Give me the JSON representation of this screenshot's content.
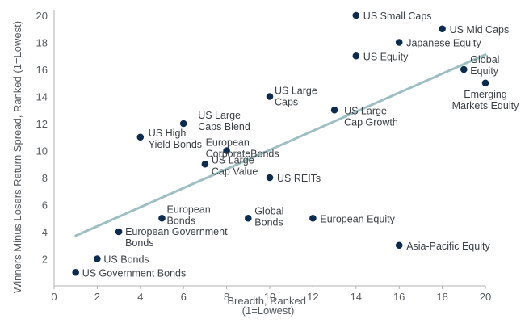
{
  "chart_data": {
    "type": "scatter",
    "title": "",
    "xlabel": [
      "Breadth, Ranked",
      "(1=Lowest)"
    ],
    "ylabel": "Winners Minus Losers Return Spread, Ranked (1=Lowest)",
    "xlim": [
      0,
      20
    ],
    "ylim": [
      0,
      20
    ],
    "xticks": [
      0,
      2,
      4,
      6,
      8,
      10,
      12,
      14,
      16,
      18,
      20
    ],
    "yticks": [
      2,
      4,
      6,
      8,
      10,
      12,
      14,
      16,
      18,
      20
    ],
    "grid": false,
    "colors": {
      "point": "#0d2b4e",
      "trendline": "#9dbfc3",
      "axis": "#b0b0b0",
      "text": "#555a5e"
    },
    "trendline": {
      "x": [
        1,
        20
      ],
      "y": [
        3.7,
        17.1
      ]
    },
    "points": [
      {
        "label": [
          "US Government Bonds"
        ],
        "x": 1,
        "y": 1
      },
      {
        "label": [
          "US Bonds"
        ],
        "x": 2,
        "y": 2
      },
      {
        "label": [
          "European Government",
          "Bonds"
        ],
        "x": 3,
        "y": 4
      },
      {
        "label": [
          "US High",
          "Yield Bonds"
        ],
        "x": 4,
        "y": 11
      },
      {
        "label": [
          "European",
          "Bonds"
        ],
        "x": 5,
        "y": 5
      },
      {
        "label": [
          "US Large",
          "Caps Blend"
        ],
        "x": 6,
        "y": 12
      },
      {
        "label": [
          "US Large",
          "Cap Value"
        ],
        "x": 7,
        "y": 9
      },
      {
        "label": [
          "European",
          "CorporateBonds"
        ],
        "x": 8,
        "y": 10
      },
      {
        "label": [
          "Global",
          "Bonds"
        ],
        "x": 9,
        "y": 5
      },
      {
        "label": [
          "US Large",
          "Caps"
        ],
        "x": 10,
        "y": 14
      },
      {
        "label": [
          "US REITs"
        ],
        "x": 10,
        "y": 8
      },
      {
        "label": [
          "European Equity"
        ],
        "x": 12,
        "y": 5
      },
      {
        "label": [
          "US Large",
          "Cap Growth"
        ],
        "x": 13,
        "y": 13
      },
      {
        "label": [
          "US Small Caps"
        ],
        "x": 14,
        "y": 20
      },
      {
        "label": [
          "US Equity"
        ],
        "x": 14,
        "y": 17
      },
      {
        "label": [
          "Japanese Equity"
        ],
        "x": 16,
        "y": 18
      },
      {
        "label": [
          "Asia-Pacific Equity"
        ],
        "x": 16,
        "y": 3
      },
      {
        "label": [
          "US Mid Caps"
        ],
        "x": 18,
        "y": 19
      },
      {
        "label": [
          "Global",
          "Equity"
        ],
        "x": 19,
        "y": 16
      },
      {
        "label": [
          "Emerging",
          "Markets Equity"
        ],
        "x": 20,
        "y": 15
      }
    ]
  }
}
